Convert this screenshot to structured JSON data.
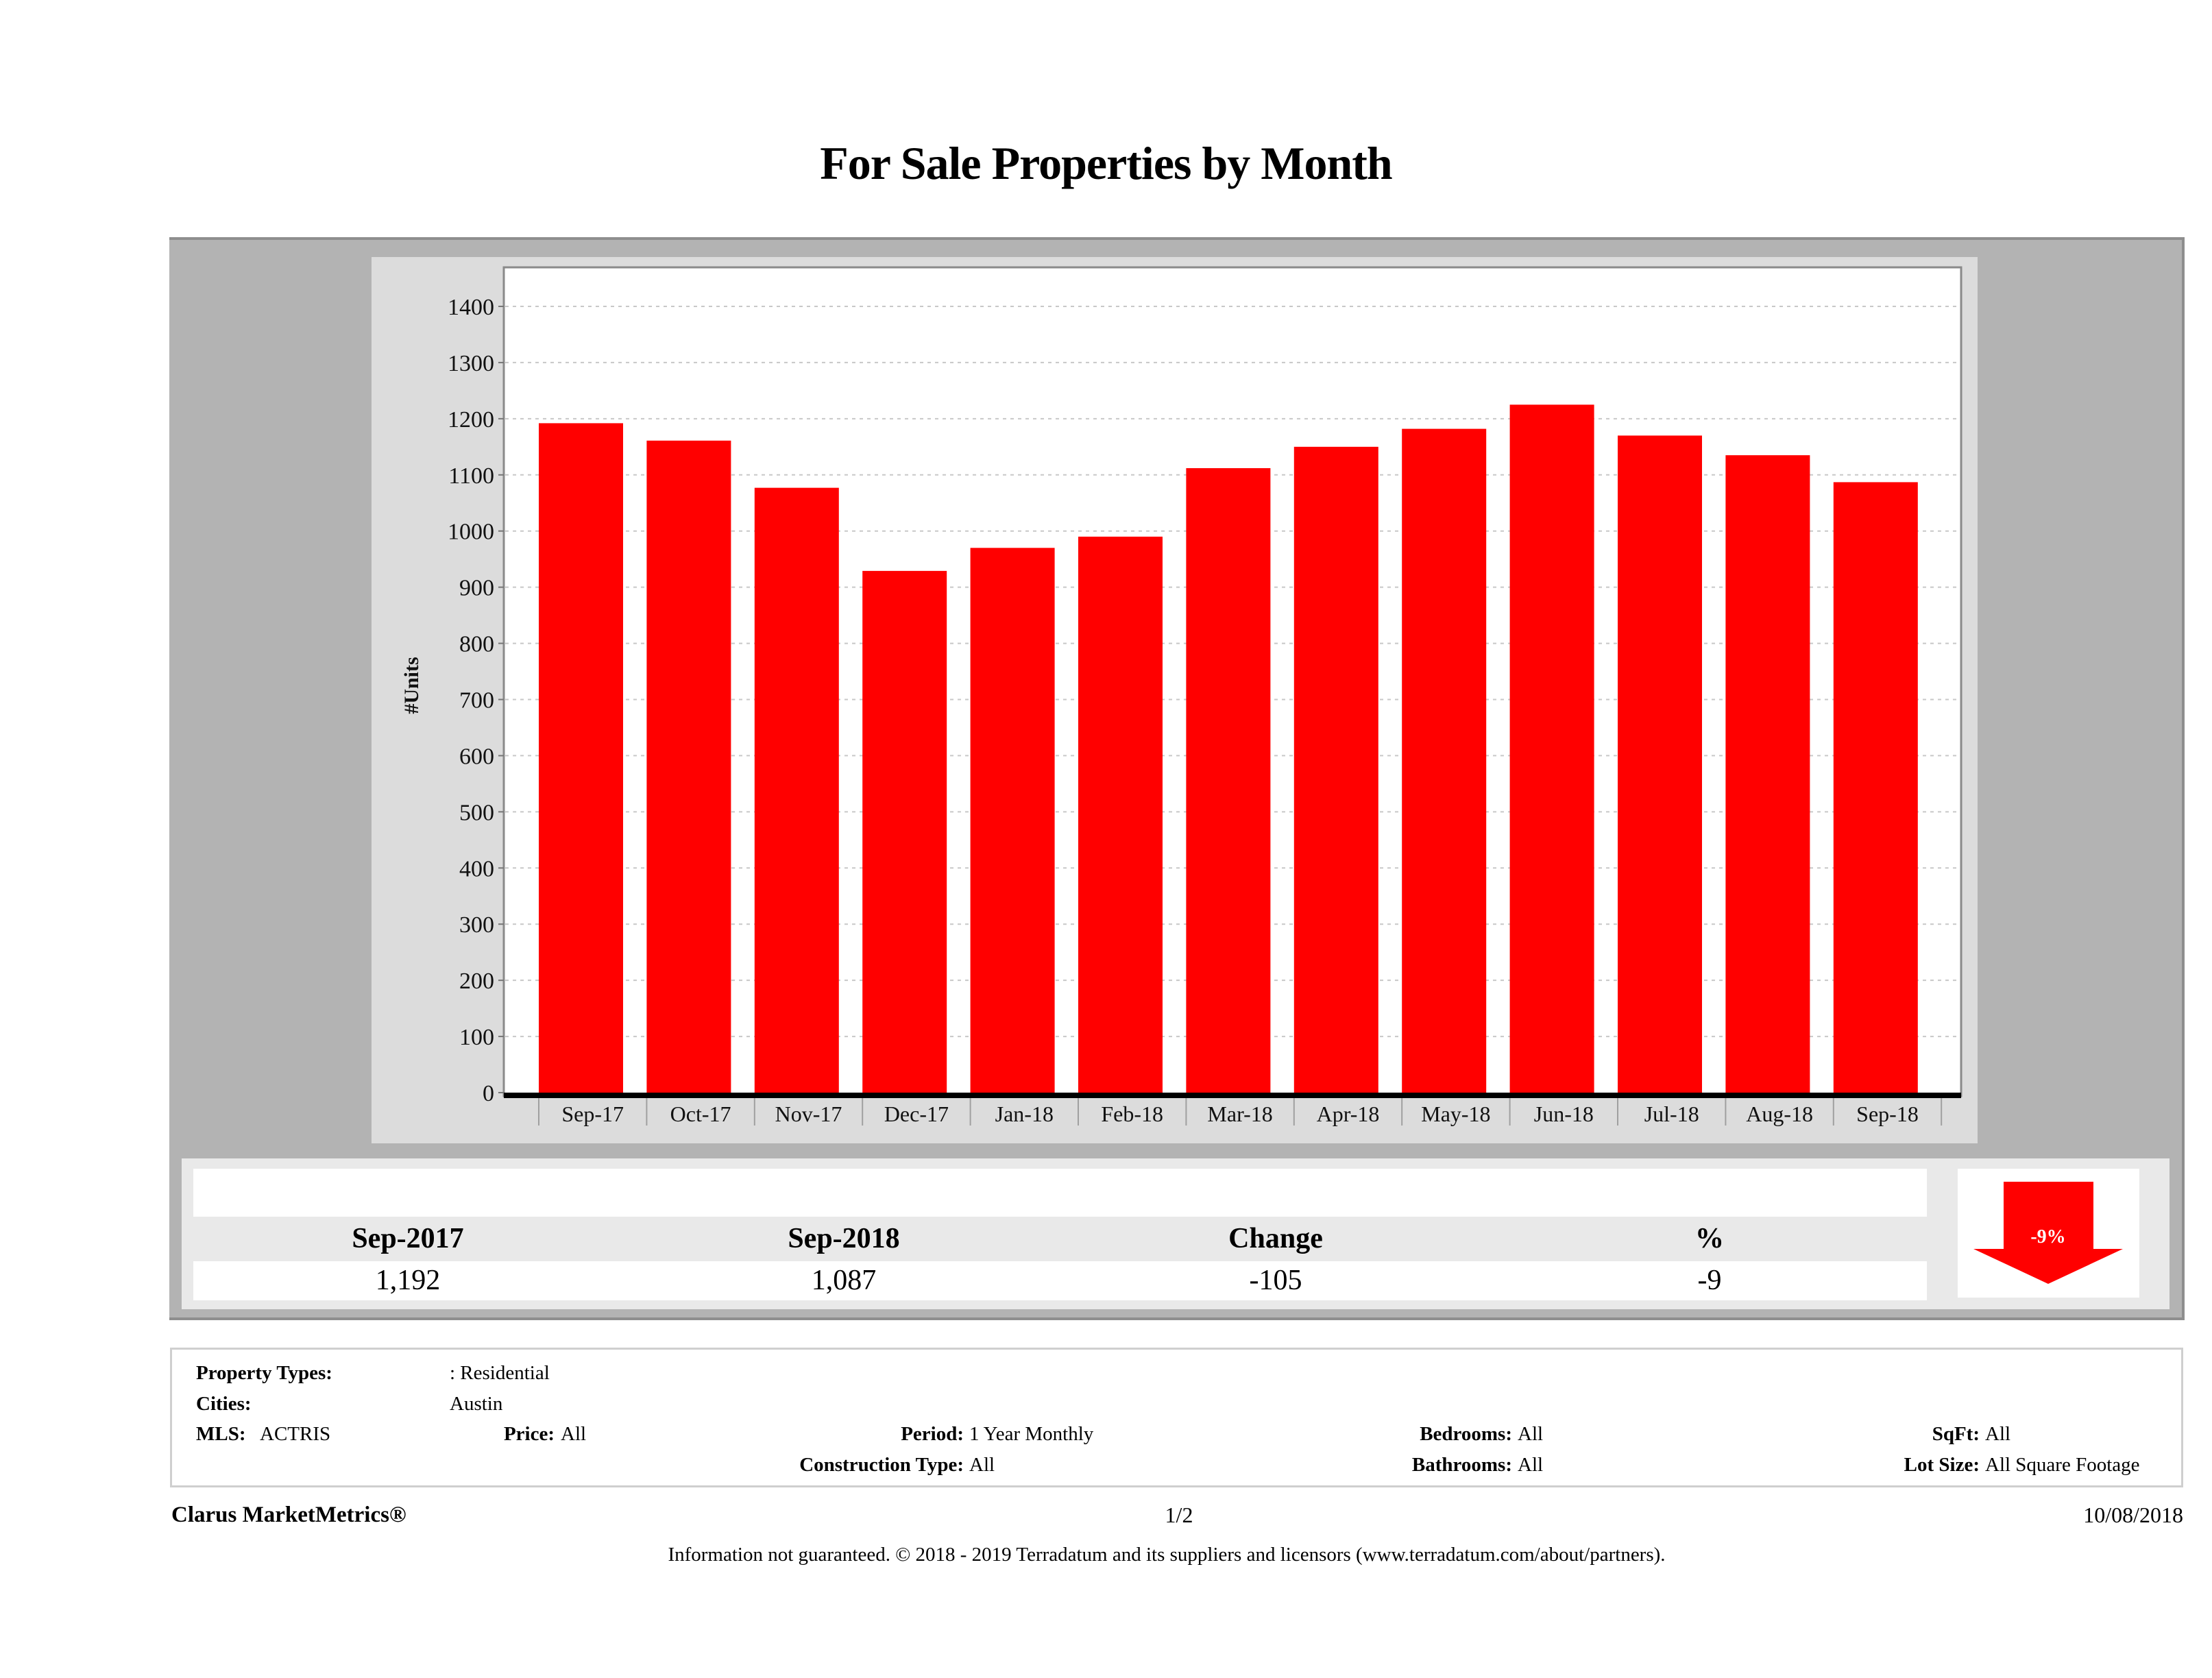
{
  "page": {
    "title": "For Sale Properties by Month"
  },
  "chart_data": {
    "type": "bar",
    "title": "For Sale Properties by Month",
    "xlabel": "",
    "ylabel": "#Units",
    "ylim": [
      0,
      1400
    ],
    "yticks": [
      0,
      100,
      200,
      300,
      400,
      500,
      600,
      700,
      800,
      900,
      1000,
      1100,
      1200,
      1300,
      1400
    ],
    "grid": true,
    "categories": [
      "Sep-17",
      "Oct-17",
      "Nov-17",
      "Dec-17",
      "Jan-18",
      "Feb-18",
      "Mar-18",
      "Apr-18",
      "May-18",
      "Jun-18",
      "Jul-18",
      "Aug-18",
      "Sep-18"
    ],
    "values": [
      1192,
      1161,
      1077,
      929,
      970,
      990,
      1112,
      1150,
      1182,
      1225,
      1170,
      1135,
      1087
    ],
    "bar_color": "#ff0000"
  },
  "summary": {
    "headers": [
      "Sep-2017",
      "Sep-2018",
      "Change",
      "%"
    ],
    "values": [
      "1,192",
      "1,087",
      "-105",
      "-9"
    ],
    "indicator": {
      "icon": "down-arrow-icon",
      "label": "-9%",
      "color": "#ff0000"
    }
  },
  "filters": {
    "property_types_label": "Property Types:",
    "property_types_value": ": Residential",
    "cities_label": "Cities:",
    "cities_value": "Austin",
    "mls_label": "MLS:",
    "mls_value": "ACTRIS",
    "price_label": "Price:",
    "price_value": "All",
    "period_label": "Period:",
    "period_value": "1 Year Monthly",
    "construction_label": "Construction Type:",
    "construction_value": "All",
    "bedrooms_label": "Bedrooms:",
    "bedrooms_value": "All",
    "bathrooms_label": "Bathrooms:",
    "bathrooms_value": "All",
    "sqft_label": "SqFt:",
    "sqft_value": "All",
    "lotsize_label": "Lot Size:",
    "lotsize_value": "All Square Footage"
  },
  "footer": {
    "brand": "Clarus MarketMetrics®",
    "page": "1/2",
    "date": "10/08/2018",
    "disclaimer": "Information not guaranteed. © 2018 - 2019 Terradatum and its suppliers and licensors (www.terradatum.com/about/partners)."
  }
}
